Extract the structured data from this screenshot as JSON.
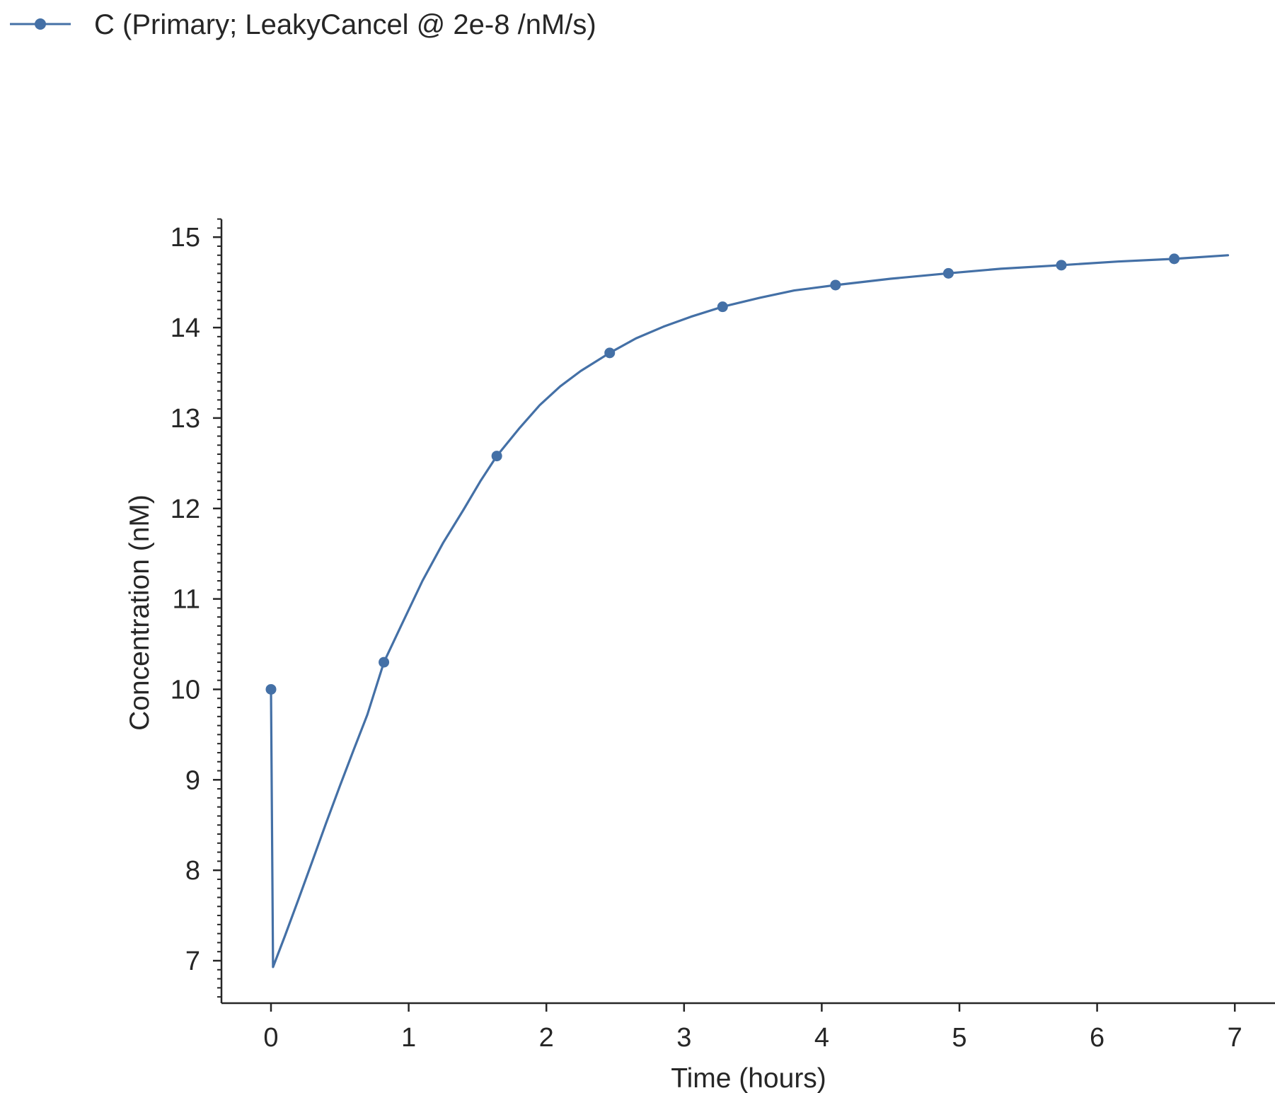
{
  "chart_data": {
    "type": "line",
    "title": "",
    "xlabel": "Time (hours)",
    "ylabel": "Concentration (nM)",
    "xlim": [
      -0.35,
      7.0
    ],
    "ylim": [
      6.53,
      15.2
    ],
    "xticks": [
      "0",
      "1",
      "2",
      "3",
      "4",
      "5",
      "6",
      "7"
    ],
    "yticks": [
      "7",
      "8",
      "9",
      "10",
      "11",
      "12",
      "13",
      "14",
      "15"
    ],
    "y_minor_step": 0.1,
    "grid": false,
    "legend_position": "top-left",
    "colors": {
      "series": "#4470a6",
      "axis": "#262626"
    },
    "series": [
      {
        "name": "C (Primary; LeakyCancel @ 2e-8 /nM/s)",
        "curve": [
          [
            0.0,
            10.0
          ],
          [
            0.015,
            6.93
          ],
          [
            0.1,
            7.27
          ],
          [
            0.2,
            7.68
          ],
          [
            0.3,
            8.1
          ],
          [
            0.4,
            8.52
          ],
          [
            0.5,
            8.93
          ],
          [
            0.6,
            9.33
          ],
          [
            0.7,
            9.72
          ],
          [
            0.82,
            10.3
          ],
          [
            0.95,
            10.72
          ],
          [
            1.1,
            11.2
          ],
          [
            1.25,
            11.62
          ],
          [
            1.4,
            11.99
          ],
          [
            1.52,
            12.3
          ],
          [
            1.64,
            12.58
          ],
          [
            1.8,
            12.88
          ],
          [
            1.95,
            13.14
          ],
          [
            2.1,
            13.35
          ],
          [
            2.25,
            13.52
          ],
          [
            2.46,
            13.72
          ],
          [
            2.65,
            13.88
          ],
          [
            2.85,
            14.01
          ],
          [
            3.05,
            14.12
          ],
          [
            3.28,
            14.23
          ],
          [
            3.55,
            14.33
          ],
          [
            3.8,
            14.41
          ],
          [
            4.1,
            14.47
          ],
          [
            4.5,
            14.54
          ],
          [
            4.92,
            14.6
          ],
          [
            5.3,
            14.65
          ],
          [
            5.74,
            14.69
          ],
          [
            6.15,
            14.73
          ],
          [
            6.56,
            14.76
          ],
          [
            6.95,
            14.8
          ]
        ],
        "markers": [
          [
            0.0,
            10.0
          ],
          [
            0.82,
            10.3
          ],
          [
            1.64,
            12.58
          ],
          [
            2.46,
            13.72
          ],
          [
            3.28,
            14.23
          ],
          [
            4.1,
            14.47
          ],
          [
            4.92,
            14.6
          ],
          [
            5.74,
            14.69
          ],
          [
            6.56,
            14.76
          ]
        ]
      }
    ]
  }
}
